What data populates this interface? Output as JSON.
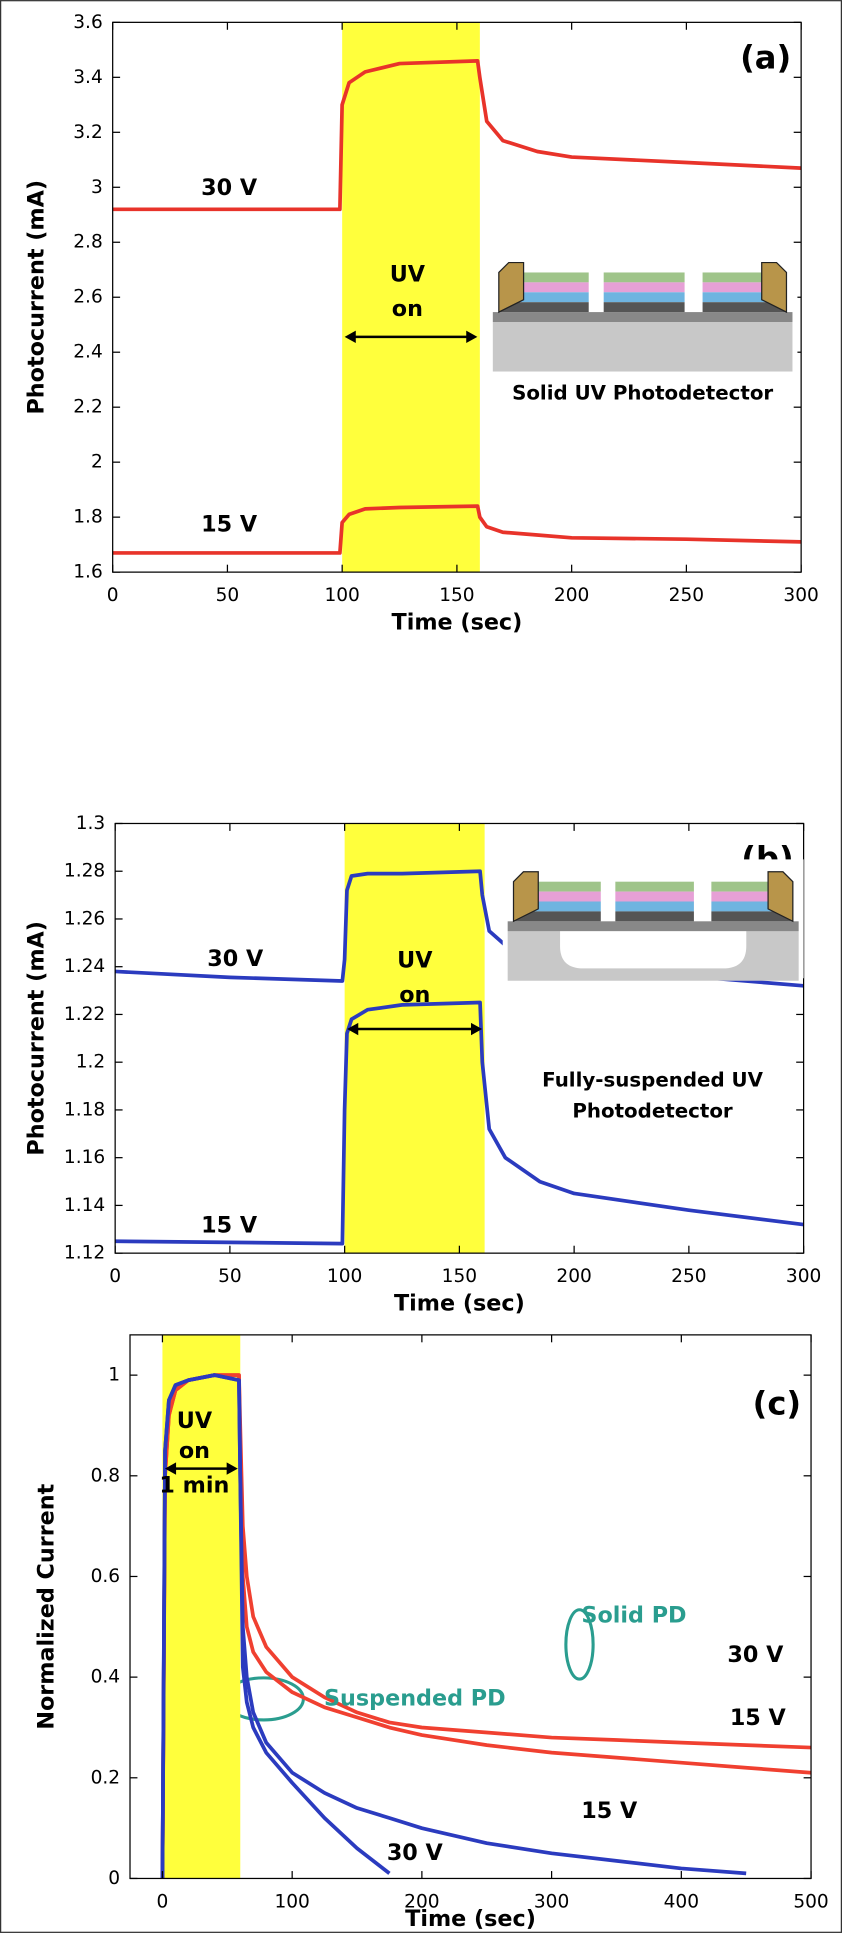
{
  "chart_data": [
    {
      "type": "line",
      "title": "(a)",
      "x_label": "Time (sec)",
      "y_label": "Photocurrent (mA)",
      "xlim": [
        0,
        300
      ],
      "ylim": [
        1.6,
        3.6
      ],
      "xticks": [
        0,
        50,
        100,
        150,
        200,
        250,
        300
      ],
      "yticks": [
        1.6,
        1.8,
        2,
        2.2,
        2.4,
        2.6,
        2.8,
        3,
        3.2,
        3.4,
        3.6
      ],
      "uv_span": [
        100,
        160
      ],
      "uv_color": "#ffff3c",
      "uv_label": [
        "UV",
        "on"
      ],
      "inset_label": [
        "Solid UV Photodetector"
      ],
      "inset_suspended": false,
      "x": [
        0,
        50,
        99,
        100,
        103,
        110,
        125,
        159,
        160,
        163,
        170,
        185,
        200,
        250,
        300
      ],
      "series": [
        {
          "name": "30 V",
          "color": "#e8332a",
          "values": [
            2.92,
            2.92,
            2.92,
            3.3,
            3.38,
            3.42,
            3.45,
            3.46,
            3.4,
            3.24,
            3.17,
            3.13,
            3.11,
            3.09,
            3.07
          ]
        },
        {
          "name": "15 V",
          "color": "#e8332a",
          "values": [
            1.67,
            1.67,
            1.67,
            1.78,
            1.81,
            1.83,
            1.835,
            1.84,
            1.8,
            1.765,
            1.745,
            1.735,
            1.725,
            1.72,
            1.71
          ]
        }
      ]
    },
    {
      "type": "line",
      "title": "(b)",
      "x_label": "Time (sec)",
      "y_label": "Photocurrent (mA)",
      "xlim": [
        0,
        300
      ],
      "ylim": [
        1.12,
        1.3
      ],
      "xticks": [
        0,
        50,
        100,
        150,
        200,
        250,
        300
      ],
      "yticks": [
        1.12,
        1.14,
        1.16,
        1.18,
        1.2,
        1.22,
        1.24,
        1.26,
        1.28,
        1.3
      ],
      "uv_span": [
        100,
        161
      ],
      "uv_color": "#ffff3c",
      "uv_label": [
        "UV",
        "on"
      ],
      "inset_label": [
        "Fully-suspended UV",
        "Photodetector"
      ],
      "inset_suspended": true,
      "x": [
        0,
        50,
        99,
        100,
        101,
        103,
        110,
        125,
        159,
        160,
        163,
        170,
        185,
        200,
        250,
        300
      ],
      "series": [
        {
          "name": "30 V",
          "color": "#2b3bbf",
          "values": [
            1.238,
            1.2355,
            1.234,
            1.243,
            1.272,
            1.278,
            1.279,
            1.279,
            1.28,
            1.27,
            1.255,
            1.249,
            1.245,
            1.242,
            1.236,
            1.232
          ]
        },
        {
          "name": "15 V",
          "color": "#2b3bbf",
          "values": [
            1.125,
            1.1245,
            1.124,
            1.18,
            1.212,
            1.218,
            1.222,
            1.224,
            1.225,
            1.2,
            1.172,
            1.16,
            1.15,
            1.145,
            1.138,
            1.132
          ]
        }
      ]
    },
    {
      "type": "line",
      "title": "(c)",
      "x_label": "Time (sec)",
      "y_label": "Normalized Current",
      "xlim": [
        -25,
        500
      ],
      "ylim": [
        0,
        1.08
      ],
      "xticks": [
        0,
        100,
        200,
        300,
        400,
        500
      ],
      "yticks": [
        0,
        0.2,
        0.4,
        0.6,
        0.8,
        1
      ],
      "uv_span": [
        0,
        60
      ],
      "uv_color": "#ffff3c",
      "uv_label": [
        "UV",
        "on",
        "1 min"
      ],
      "group_color": "#2a9d8f",
      "x": [
        0,
        2,
        5,
        10,
        20,
        40,
        59,
        60,
        62,
        65,
        70,
        80,
        100,
        125,
        150,
        175,
        200,
        250,
        300,
        350,
        400,
        450,
        500
      ],
      "series": [
        {
          "name": "30 V",
          "group": "Solid PD",
          "color": "#f04030",
          "values": [
            0,
            0.8,
            0.92,
            0.97,
            0.99,
            1.0,
            1.0,
            0.9,
            0.7,
            0.6,
            0.52,
            0.46,
            0.4,
            0.36,
            0.33,
            0.31,
            0.3,
            0.29,
            0.28,
            0.275,
            0.27,
            0.265,
            0.26
          ]
        },
        {
          "name": "15 V",
          "group": "Solid PD",
          "color": "#f04030",
          "values": [
            0,
            0.8,
            0.92,
            0.97,
            0.99,
            1.0,
            1.0,
            0.85,
            0.6,
            0.5,
            0.45,
            0.41,
            0.37,
            0.34,
            0.32,
            0.3,
            0.285,
            0.265,
            0.25,
            0.24,
            0.23,
            0.22,
            0.21
          ]
        },
        {
          "name": "30 V",
          "group": "Suspended PD",
          "color": "#2b3bbf",
          "values": [
            0,
            0.85,
            0.95,
            0.98,
            0.99,
            1.0,
            0.99,
            0.8,
            0.42,
            0.35,
            0.3,
            0.25,
            0.19,
            0.12,
            0.06,
            0.01,
            null,
            null,
            null,
            null,
            null,
            null,
            null
          ]
        },
        {
          "name": "15 V",
          "group": "Suspended PD",
          "color": "#2b3bbf",
          "values": [
            0,
            0.85,
            0.95,
            0.98,
            0.99,
            1.0,
            0.99,
            0.8,
            0.5,
            0.4,
            0.33,
            0.27,
            0.21,
            0.17,
            0.14,
            0.12,
            0.1,
            0.07,
            0.05,
            0.035,
            0.02,
            0.01,
            null
          ]
        }
      ]
    }
  ]
}
